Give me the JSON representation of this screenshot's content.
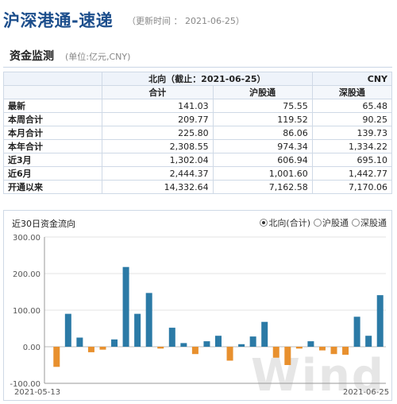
{
  "header": {
    "title": "沪深港通-速递",
    "updated": "（更新时间 ： 2021-06-25）"
  },
  "section": {
    "title": "资金监测",
    "unit": "(单位:亿元,CNY)"
  },
  "table": {
    "north_label": "北向（截止：2021-06-25）",
    "currency": "CNY",
    "columns": [
      "合计",
      "沪股通",
      "深股通"
    ],
    "rows": [
      {
        "label": "最新",
        "total": "141.03",
        "sh": "75.55",
        "sz": "65.48"
      },
      {
        "label": "本周合计",
        "total": "209.77",
        "sh": "119.52",
        "sz": "90.25"
      },
      {
        "label": "本月合计",
        "total": "225.80",
        "sh": "86.06",
        "sz": "139.73"
      },
      {
        "label": "本年合计",
        "total": "2,308.55",
        "sh": "974.34",
        "sz": "1,334.22"
      },
      {
        "label": "近3月",
        "total": "1,302.04",
        "sh": "606.94",
        "sz": "695.10"
      },
      {
        "label": "近6月",
        "total": "2,444.37",
        "sh": "1,001.60",
        "sz": "1,442.77"
      },
      {
        "label": "开通以来",
        "total": "14,332.64",
        "sh": "7,162.58",
        "sz": "7,170.06"
      }
    ]
  },
  "chart_section": {
    "title": "近30日资金流向",
    "legend": [
      {
        "label": "北向(合计)",
        "selected": true
      },
      {
        "label": "沪股通",
        "selected": false
      },
      {
        "label": "深股通",
        "selected": false
      }
    ]
  },
  "chart_data": {
    "type": "bar",
    "y_ticks": [
      "300.00",
      "200.00",
      "100.00",
      "0.00",
      "-100.00"
    ],
    "ylim": [
      -100,
      300
    ],
    "x_start_label": "2021-05-13",
    "x_end_label": "2021-06-25",
    "positive_color": "#2b7aa6",
    "negative_color": "#e8902e",
    "values": [
      -55,
      90,
      25,
      -15,
      -8,
      20,
      218,
      90,
      147,
      -5,
      52,
      10,
      -20,
      15,
      30,
      -38,
      7,
      28,
      68,
      -30,
      -50,
      -5,
      15,
      -10,
      -20,
      -22,
      82,
      30,
      141
    ]
  },
  "watermark": "Wind"
}
